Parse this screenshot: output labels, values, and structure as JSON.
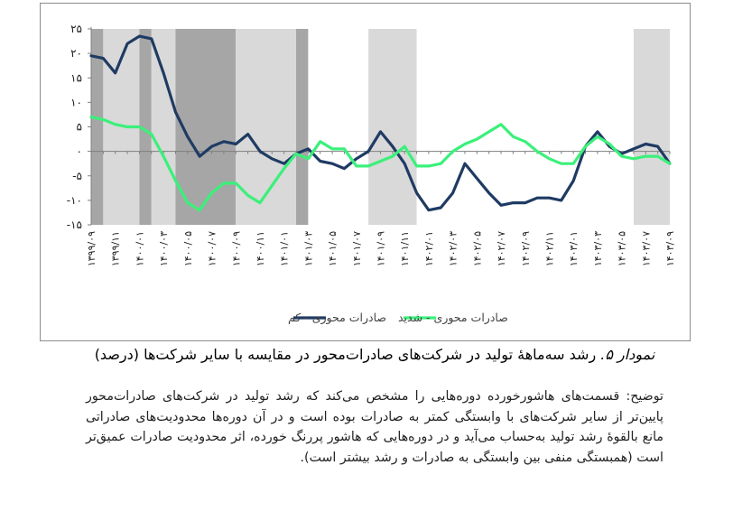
{
  "chart_data": {
    "type": "line",
    "ylim": [
      -15,
      25
    ],
    "yticks": [
      "۲۵",
      "۲۰",
      "۱۵",
      "۱۰",
      "۵",
      "۰",
      "-۵",
      "-۱۰",
      "-۱۵"
    ],
    "yticks_values": [
      25,
      20,
      15,
      10,
      5,
      0,
      -5,
      -10,
      -15
    ],
    "xtick_labels": [
      "۱۳۹۹/۰۹",
      "۱۳۹۹/۱۱",
      "۱۴۰۰/۰۱",
      "۱۴۰۰/۰۳",
      "۱۴۰۰/۰۵",
      "۱۴۰۰/۰۷",
      "۱۴۰۰/۰۹",
      "۱۴۰۰/۱۱",
      "۱۴۰۱/۰۱",
      "۱۴۰۱/۰۳",
      "۱۴۰۱/۰۵",
      "۱۴۰۱/۰۷",
      "۱۴۰۱/۰۹",
      "۱۴۰۱/۱۱",
      "۱۴۰۲/۰۱",
      "۱۴۰۲/۰۳",
      "۱۴۰۲/۰۵",
      "۱۴۰۲/۰۷",
      "۱۴۰۲/۰۹",
      "۱۴۰۲/۱۱",
      "۱۴۰۳/۰۱",
      "۱۴۰۳/۰۳",
      "۱۴۰۳/۰۵",
      "۱۴۰۳/۰۷",
      "۱۴۰۳/۰۹"
    ],
    "n_months": 49,
    "shaded_periods": [
      {
        "start": 0,
        "end": 1,
        "shade": "dark"
      },
      {
        "start": 1,
        "end": 4,
        "shade": "light"
      },
      {
        "start": 4,
        "end": 5,
        "shade": "dark"
      },
      {
        "start": 5,
        "end": 7,
        "shade": "light"
      },
      {
        "start": 7,
        "end": 12,
        "shade": "dark"
      },
      {
        "start": 12,
        "end": 17,
        "shade": "light"
      },
      {
        "start": 17,
        "end": 18,
        "shade": "dark"
      },
      {
        "start": 23,
        "end": 27,
        "shade": "light"
      },
      {
        "start": 45,
        "end": 48,
        "shade": "light"
      }
    ],
    "grid": false,
    "legend_position": "bottom",
    "series": [
      {
        "name": "صادرات محوری - کم",
        "color": "#1f3b63",
        "values": [
          19.5,
          19,
          16,
          22,
          23.5,
          23,
          16,
          8,
          3,
          -1,
          1,
          2,
          1.5,
          3.5,
          0,
          -1.5,
          -2.5,
          -0.5,
          0.5,
          -2,
          -2.5,
          -3.5,
          -1.5,
          0,
          4,
          1,
          -2.5,
          -8.5,
          -12,
          -11.5,
          -8.5,
          -2.5,
          -5.5,
          -8.5,
          -11,
          -10.5,
          -10.5,
          -9.5,
          -9.5,
          -10,
          -6,
          1,
          4,
          1,
          -0.5,
          0.5,
          1.5,
          1,
          -2.5
        ]
      },
      {
        "name": "صادرات محوری - شدید",
        "color": "#3bf07a",
        "values": [
          7,
          6.5,
          5.5,
          5,
          5,
          3.5,
          -1,
          -6,
          -10.5,
          -12,
          -8.5,
          -6.5,
          -6.5,
          -9,
          -10.5,
          -7,
          -3.5,
          -0.5,
          -1.5,
          2,
          0.5,
          0.5,
          -3,
          -3,
          -2,
          -1,
          1,
          -3,
          -3,
          -2.5,
          0,
          1.5,
          2.5,
          4,
          5.5,
          3,
          2,
          0,
          -1.5,
          -2.5,
          -2.5,
          1,
          3,
          1.5,
          -1,
          -1.5,
          -1,
          -1,
          -2.5
        ]
      }
    ]
  },
  "caption": {
    "label": "نمودار ۵.",
    "text": " رشد سه‌ماههٔ تولید در شرکت‌های صادرات‌محور در مقایسه با سایر شرکت‌ها (درصد)"
  },
  "description": "توضیح: قسمت‌های هاشورخورده دوره‌هایی را مشخص می‌کند که رشد تولید در شرکت‌های صادرات‌محور پایین‌تر از سایر شرکت‌های با وابستگی کمتر به صادرات بوده است و در آن دوره‌ها محدودیت‌های صادراتی مانع بالقوهٔ رشد تولید به‌حساب می‌آید و در دوره‌هایی که هاشور پررنگ خورده، اثر محدودیت صادرات عمیق‌تر است (همبستگی منفی بین وابستگی به صادرات و رشد بیشتر است).",
  "colors": {
    "shade_dark": "#a6a6a6",
    "shade_light": "#d9d9d9",
    "axis": "#7f7f7f"
  }
}
